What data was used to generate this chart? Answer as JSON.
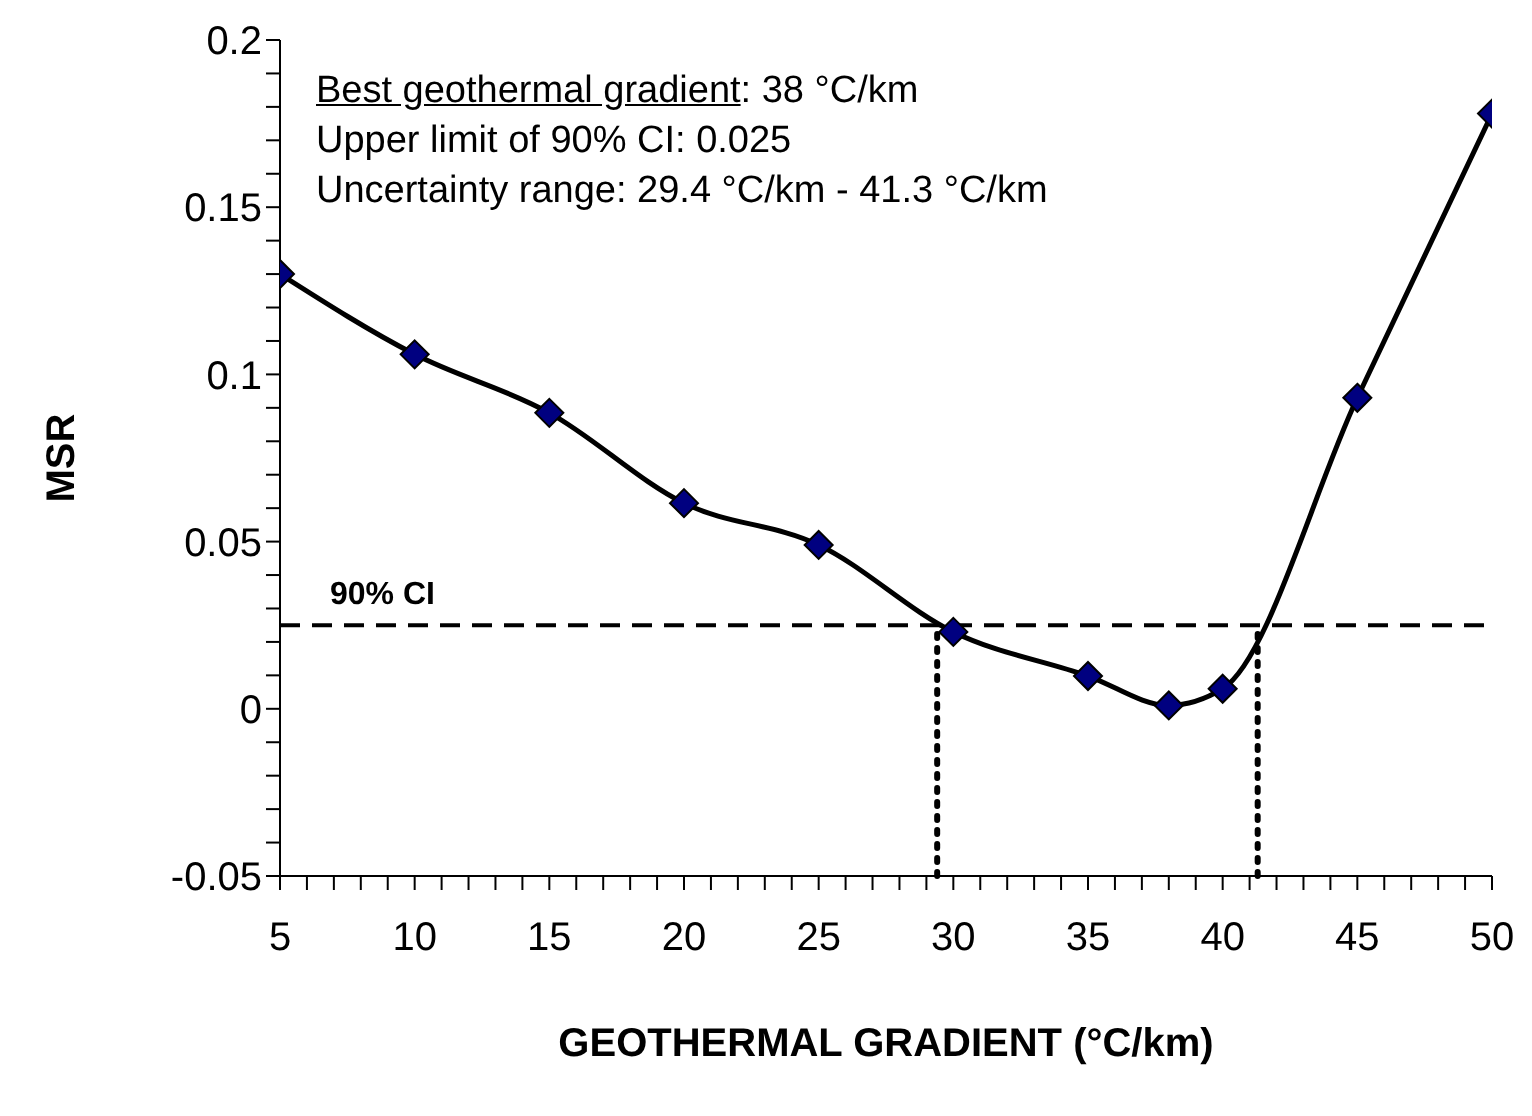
{
  "chart_data": {
    "type": "line",
    "xlabel": "GEOTHERMAL GRADIENT (°C/km)",
    "ylabel": "MSR",
    "annotations": [
      "Best geothermal gradient: 38 °C/km",
      "Upper limit of 90% CI: 0.025",
      "Uncertainty range: 29.4 °C/km - 41.3 °C/km"
    ],
    "x": [
      5,
      10,
      15,
      20,
      25,
      30,
      35,
      38,
      40,
      45,
      50
    ],
    "series": [
      {
        "color": "#000080",
        "values": [
          0.13,
          0.106,
          0.0885,
          0.0615,
          0.049,
          0.023,
          0.0098,
          0.001,
          0.006,
          0.093,
          0.178
        ]
      }
    ],
    "marker": "diamond",
    "line_style": "solid",
    "grid": false,
    "legend": false,
    "xlim": [
      5,
      50
    ],
    "xticks": [
      5,
      {
        "value": 6,
        "label": null
      },
      {
        "value": 7,
        "label": null
      },
      {
        "value": 8,
        "label": null
      },
      {
        "value": 9,
        "label": null
      },
      10,
      {
        "value": 11,
        "label": null
      },
      {
        "value": 12,
        "label": null
      },
      {
        "value": 13,
        "label": null
      },
      {
        "value": 14,
        "label": null
      },
      15,
      {
        "value": 16,
        "label": null
      },
      {
        "value": 17,
        "label": null
      },
      {
        "value": 18,
        "label": null
      },
      {
        "value": 19,
        "label": null
      },
      20,
      {
        "value": 21,
        "label": null
      },
      {
        "value": 22,
        "label": null
      },
      {
        "value": 23,
        "label": null
      },
      {
        "value": 24,
        "label": null
      },
      25,
      {
        "value": 26,
        "label": null
      },
      {
        "value": 27,
        "label": null
      },
      {
        "value": 28,
        "label": null
      },
      {
        "value": 29,
        "label": null
      },
      30,
      {
        "value": 31,
        "label": null
      },
      {
        "value": 32,
        "label": null
      },
      {
        "value": 33,
        "label": null
      },
      {
        "value": 34,
        "label": null
      },
      35,
      {
        "value": 36,
        "label": null
      },
      {
        "value": 37,
        "label": null
      },
      {
        "value": 38,
        "label": null
      },
      {
        "value": 39,
        "label": null
      },
      40,
      {
        "value": 41,
        "label": null
      },
      {
        "value": 42,
        "label": null
      },
      {
        "value": 43,
        "label": null
      },
      {
        "value": 44,
        "label": null
      },
      45,
      {
        "value": 46,
        "label": null
      },
      {
        "value": 47,
        "label": null
      },
      {
        "value": 48,
        "label": null
      },
      {
        "value": 49,
        "label": null
      },
      50
    ],
    "ylim": [
      -0.05,
      0.2
    ],
    "yticks": [
      -0.05,
      {
        "value": -0.04,
        "label": null
      },
      {
        "value": -0.03,
        "label": null
      },
      {
        "value": -0.02,
        "label": null
      },
      {
        "value": -0.01,
        "label": null
      },
      0,
      {
        "value": 0.01,
        "label": null
      },
      {
        "value": 0.02,
        "label": null
      },
      {
        "value": 0.03,
        "label": null
      },
      {
        "value": 0.04,
        "label": null
      },
      0.05,
      {
        "value": 0.06,
        "label": null
      },
      {
        "value": 0.07,
        "label": null
      },
      {
        "value": 0.08,
        "label": null
      },
      {
        "value": 0.09,
        "label": null
      },
      0.1,
      {
        "value": 0.11,
        "label": null
      },
      {
        "value": 0.12,
        "label": null
      },
      {
        "value": 0.13,
        "label": null
      },
      {
        "value": 0.14,
        "label": null
      },
      0.15,
      {
        "value": 0.16,
        "label": null
      },
      {
        "value": 0.17,
        "label": null
      },
      {
        "value": 0.18,
        "label": null
      },
      {
        "value": 0.19,
        "label": null
      },
      0.2
    ],
    "ref_lines": [
      {
        "axis": "y",
        "value": 0.025,
        "label": "90% CI",
        "line_style": "dashed"
      },
      {
        "axis": "x",
        "value": 29.4,
        "label": null,
        "line_style": "dotted"
      },
      {
        "axis": "x",
        "value": 41.3,
        "label": null,
        "line_style": "dotted"
      }
    ]
  }
}
